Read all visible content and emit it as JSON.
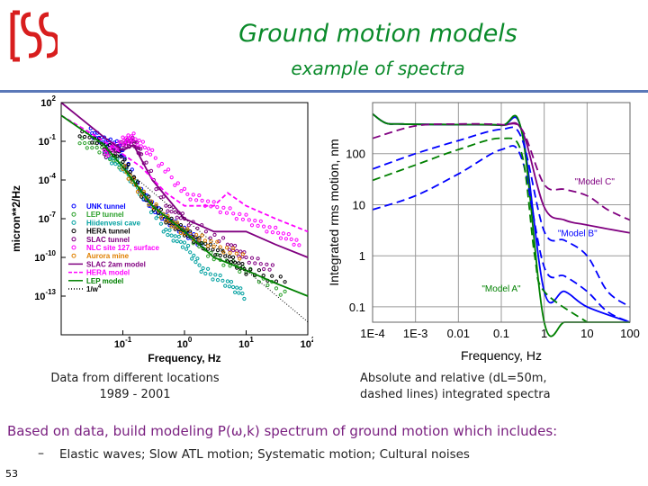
{
  "slide": {
    "title": "Ground motion models",
    "subtitle": "example of spectra",
    "caption_left_line1": "Data from different locations",
    "caption_left_line2": "1989 - 2001",
    "caption_right_line1": "Absolute and relative (dL=50m,",
    "caption_right_line2": "dashed lines) integrated spectra",
    "summary_prefix": "Based on data, build modeling P(",
    "summary_symbol": "ω",
    "summary_suffix": ",k) spectrum of ground motion which includes:",
    "bullet_dash": "–",
    "bullet_text": "Elastic waves; Slow ATL motion; Systematic motion; Cultural noises",
    "slide_number": "53"
  },
  "colors": {
    "title_green": "#0a8a2a",
    "summary_purple": "#7a2080",
    "rule_blue": "#5a78b8",
    "logo_red": "#d81e1e"
  },
  "chart_data": [
    {
      "type": "line",
      "xlabel": "Frequency, Hz",
      "ylabel": "micron**2/Hz",
      "xscale": "log",
      "yscale": "log",
      "xlim": [
        0.01,
        100
      ],
      "ylim": [
        1e-16,
        100
      ],
      "x_ticks": [
        "10-1",
        "10^0",
        "10^1",
        "10^2"
      ],
      "y_ticks": [
        "10^2",
        "10^-1",
        "10^-4",
        "10^-7",
        "10^-10",
        "10^-13"
      ],
      "grid": false,
      "legend_position": "lower-left",
      "legend": [
        {
          "label": "UNK tunnel",
          "color": "#0000ff",
          "style": "markers"
        },
        {
          "label": "LEP tunnel",
          "color": "#2aa02a",
          "style": "markers"
        },
        {
          "label": "Hiidenvesi cave",
          "color": "#00a0a0",
          "style": "markers"
        },
        {
          "label": "HERA tunnel",
          "color": "#000000",
          "style": "markers"
        },
        {
          "label": "SLAC tunnel",
          "color": "#800080",
          "style": "markers"
        },
        {
          "label": "NLC site 127, surface",
          "color": "#ff00ff",
          "style": "markers"
        },
        {
          "label": "Aurora mine",
          "color": "#e08000",
          "style": "markers"
        },
        {
          "label": "SLAC 2am model",
          "color": "#800080",
          "style": "line"
        },
        {
          "label": "HERA model",
          "color": "#ff00ff",
          "style": "dashed"
        },
        {
          "label": "LEP model",
          "color": "#008000",
          "style": "line"
        },
        {
          "label": "1/w^4",
          "color": "#000000",
          "style": "dotted"
        }
      ],
      "series": [
        {
          "name": "UNK tunnel",
          "color": "#0000ff",
          "x": [
            0.03,
            0.05,
            0.08,
            0.1,
            0.2,
            0.3,
            0.5,
            1,
            2
          ],
          "y": [
            0.5,
            0.1,
            0.05,
            0.01,
            1e-05,
            1e-06,
            1e-07,
            1e-08,
            1e-09
          ]
        },
        {
          "name": "LEP tunnel",
          "color": "#2aa02a",
          "x": [
            0.02,
            0.05,
            0.1,
            0.2,
            0.5,
            1,
            3,
            10,
            50
          ],
          "y": [
            0.1,
            0.02,
            0.001,
            1e-05,
            1e-07,
            1e-08,
            1e-10,
            1e-11,
            1e-13
          ]
        },
        {
          "name": "Hiidenvesi cave",
          "color": "#00a0a0",
          "x": [
            0.05,
            0.1,
            0.2,
            0.5,
            1,
            2,
            5,
            10
          ],
          "y": [
            0.01,
            0.001,
            1e-05,
            1e-08,
            1e-09,
            1e-11,
            1e-12,
            1e-13
          ]
        },
        {
          "name": "HERA tunnel",
          "color": "#000000",
          "x": [
            0.02,
            0.05,
            0.1,
            0.2,
            0.5,
            1,
            2,
            5,
            10,
            50
          ],
          "y": [
            0.5,
            0.05,
            0.005,
            1e-05,
            1e-07,
            1e-08,
            1e-09,
            1e-10,
            1e-11,
            1e-12
          ]
        },
        {
          "name": "SLAC tunnel",
          "color": "#800080",
          "x": [
            0.05,
            0.1,
            0.15,
            0.2,
            0.5,
            1,
            5,
            10,
            30
          ],
          "y": [
            0.01,
            0.05,
            0.1,
            0.01,
            1e-06,
            1e-07,
            1e-09,
            1e-10,
            1e-11
          ]
        },
        {
          "name": "NLC site 127, surface",
          "color": "#ff00ff",
          "x": [
            0.05,
            0.1,
            0.15,
            0.3,
            1,
            3,
            10,
            30,
            80
          ],
          "y": [
            0.01,
            0.1,
            0.2,
            0.01,
            1e-05,
            1e-06,
            1e-07,
            1e-08,
            1e-09
          ]
        },
        {
          "name": "Aurora mine",
          "color": "#e08000",
          "x": [
            0.1,
            0.2,
            0.5,
            1,
            3,
            10
          ],
          "y": [
            0.001,
            1e-05,
            1e-07,
            1e-08,
            1e-09,
            1e-10
          ]
        },
        {
          "name": "SLAC 2am model",
          "color": "#800080",
          "x": [
            0.01,
            0.05,
            0.1,
            0.15,
            0.3,
            1,
            3,
            10,
            30,
            100
          ],
          "y": [
            100,
            0.2,
            0.02,
            0.05,
            0.0001,
            1e-07,
            1e-08,
            1e-08,
            1e-09,
            1e-10
          ]
        },
        {
          "name": "HERA model",
          "color": "#ff00ff",
          "x": [
            0.01,
            0.05,
            0.1,
            0.2,
            0.5,
            1,
            3,
            5,
            10,
            30,
            100
          ],
          "y": [
            10,
            0.1,
            0.01,
            0.001,
            1e-05,
            1e-06,
            1e-06,
            1e-05,
            1e-06,
            1e-07,
            1e-08
          ]
        },
        {
          "name": "LEP model",
          "color": "#008000",
          "x": [
            0.01,
            0.05,
            0.1,
            0.3,
            1,
            3,
            10,
            30,
            100
          ],
          "y": [
            10,
            0.05,
            0.001,
            1e-06,
            1e-08,
            1e-10,
            1e-11,
            1e-12,
            1e-13
          ]
        },
        {
          "name": "1/w^4",
          "color": "#000000",
          "x": [
            0.1,
            1,
            10,
            100
          ],
          "y": [
            0.001,
            1e-07,
            1e-11,
            1e-15
          ]
        }
      ]
    },
    {
      "type": "line",
      "xlabel": "Frequency, Hz",
      "ylabel": "Integrated rms motion, nm",
      "xscale": "log",
      "yscale": "log",
      "xlim": [
        0.0001,
        100
      ],
      "ylim": [
        0.05,
        1000
      ],
      "x_ticks": [
        "1E-4",
        "1E-3",
        "0.01",
        "0.1",
        "1",
        "10",
        "100"
      ],
      "y_ticks": [
        "100",
        "10",
        "1",
        "0.1"
      ],
      "grid": true,
      "annotations": [
        "\"Model C\"",
        "\"Model B\"",
        "\"Model A\""
      ],
      "series": [
        {
          "name": "Model C",
          "color": "#800080",
          "style": "solid",
          "x": [
            0.0001,
            0.0002,
            0.0005,
            0.01,
            0.1,
            0.3,
            1,
            3,
            10,
            100
          ],
          "y": [
            600,
            400,
            380,
            370,
            360,
            290,
            9,
            5,
            4,
            2.8
          ]
        },
        {
          "name": "Model B",
          "color": "#0000ff",
          "style": "solid",
          "x": [
            0.0001,
            0.0002,
            0.0005,
            0.01,
            0.1,
            0.3,
            1,
            3,
            10,
            100
          ],
          "y": [
            600,
            400,
            380,
            370,
            360,
            280,
            0.2,
            0.2,
            0.1,
            0.05
          ]
        },
        {
          "name": "Model A",
          "color": "#008000",
          "style": "solid",
          "x": [
            0.0001,
            0.0002,
            0.0005,
            0.01,
            0.1,
            0.3,
            1,
            3,
            10,
            100
          ],
          "y": [
            600,
            400,
            380,
            370,
            360,
            270,
            0.05,
            0.05,
            0.05,
            0.05
          ]
        },
        {
          "name": "Model C",
          "color": "#800080",
          "style": "dashed",
          "x": [
            0.0001,
            0.001,
            0.01,
            0.1,
            0.3,
            1,
            3,
            10,
            30,
            100
          ],
          "y": [
            200,
            350,
            380,
            370,
            300,
            25,
            20,
            15,
            8,
            5
          ]
        },
        {
          "name": "Model B",
          "color": "#0000ff",
          "style": "dashed",
          "x": [
            0.0001,
            0.001,
            0.01,
            0.1,
            0.3,
            1,
            3,
            10,
            30,
            100
          ],
          "y": [
            50,
            100,
            180,
            300,
            200,
            3,
            2,
            1,
            0.2,
            0.1
          ]
        },
        {
          "name": "Model B",
          "color": "#0000ff",
          "style": "dashed",
          "x": [
            0.0001,
            0.001,
            0.01,
            0.1,
            0.3,
            1,
            3,
            10,
            30,
            100
          ],
          "y": [
            8,
            15,
            40,
            120,
            80,
            0.6,
            0.4,
            0.2,
            0.08,
            0.05
          ]
        },
        {
          "name": "Model A",
          "color": "#008000",
          "style": "dashed",
          "x": [
            0.0001,
            0.001,
            0.01,
            0.1,
            0.3,
            0.6,
            1,
            10
          ],
          "y": [
            30,
            60,
            120,
            200,
            100,
            1,
            0.2,
            0.05
          ]
        }
      ]
    }
  ]
}
